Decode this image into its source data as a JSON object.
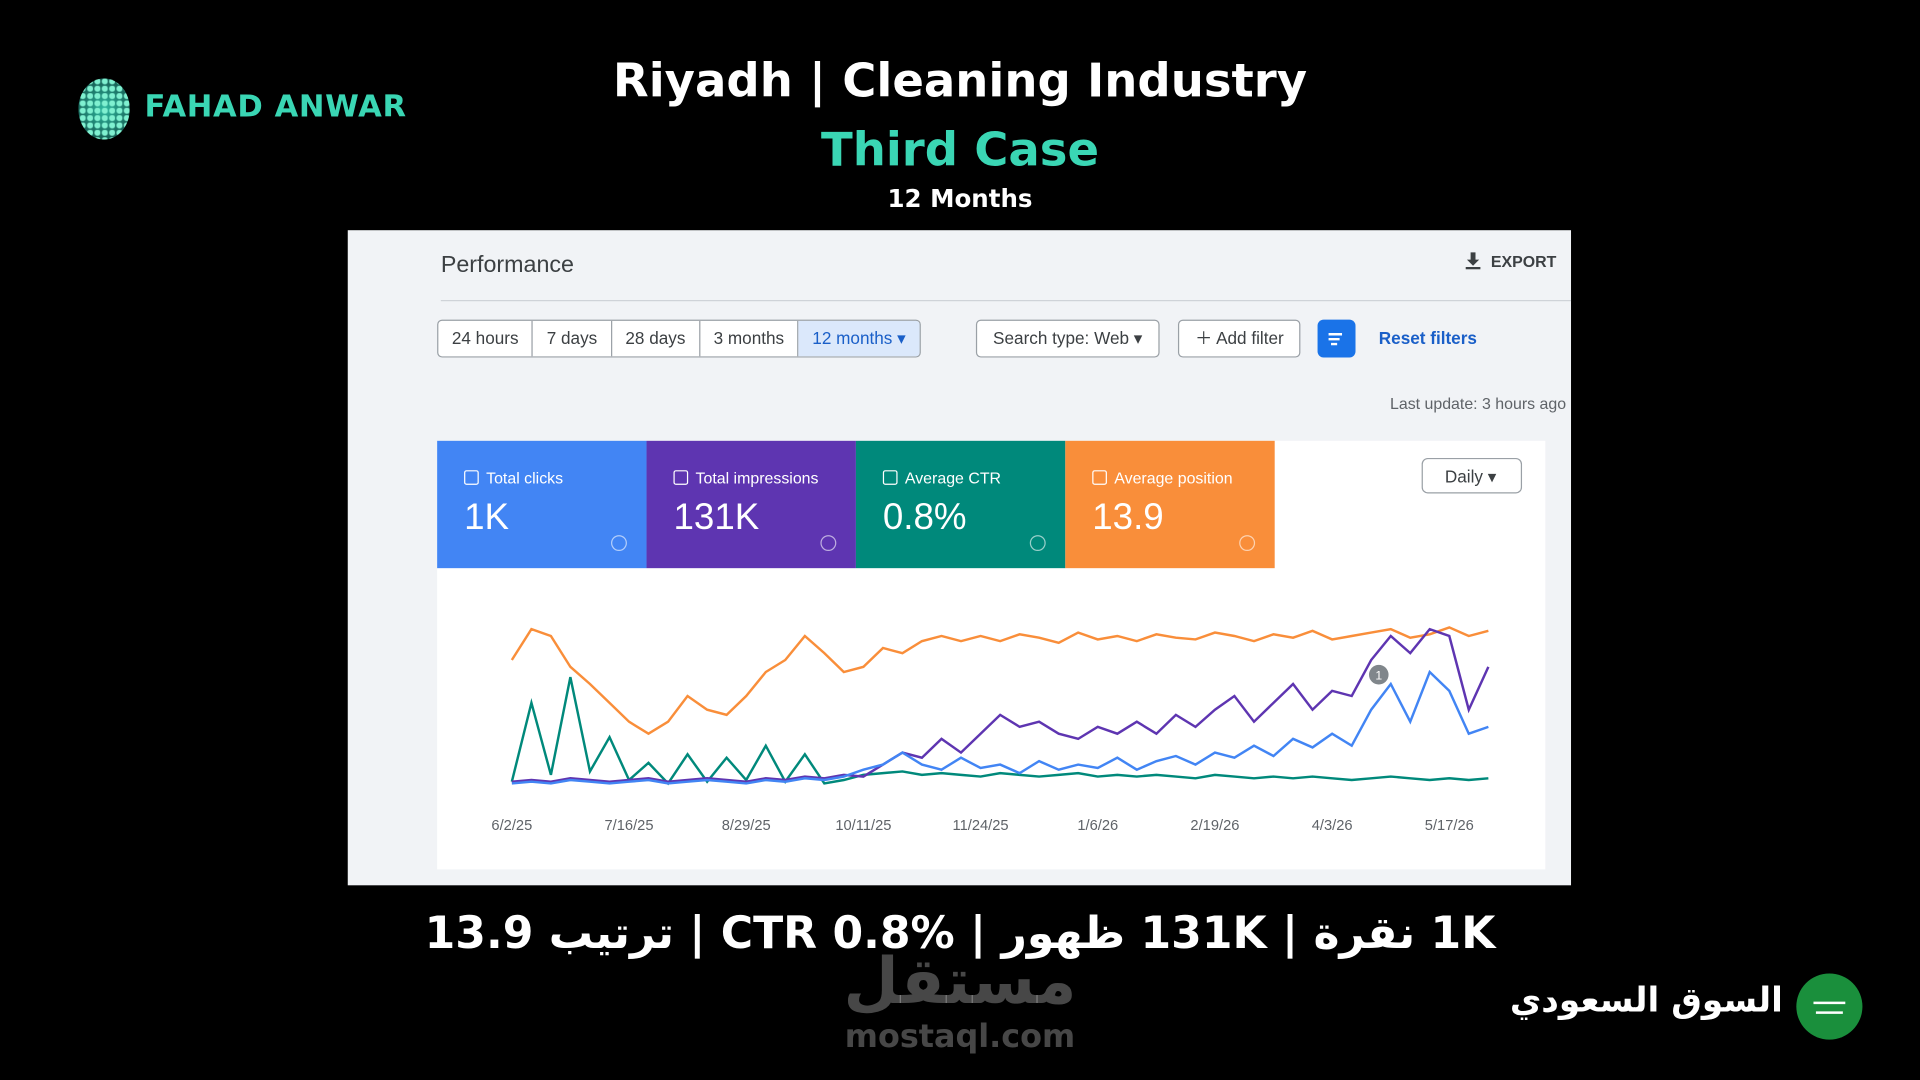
{
  "header": {
    "brand": "FAHAD ANWAR",
    "title": "Riyadh | Cleaning Industry",
    "subtitle": "Third Case",
    "period": "12 Months"
  },
  "panel": {
    "title": "Performance",
    "export": "EXPORT",
    "date_ranges": [
      "24 hours",
      "7 days",
      "28 days",
      "3 months",
      "12 months"
    ],
    "search_type": "Search type: Web",
    "add_filter": "Add filter",
    "reset_filters": "Reset filters",
    "last_update": "Last update: 3 hours ago",
    "granularity": "Daily"
  },
  "chart_data": {
    "type": "line",
    "categories": [
      "6/2/25",
      null,
      null,
      null,
      null,
      null,
      "7/16/25",
      null,
      null,
      null,
      null,
      null,
      "8/29/25",
      null,
      null,
      null,
      null,
      null,
      "10/11/25",
      null,
      null,
      null,
      null,
      null,
      "11/24/25",
      null,
      null,
      null,
      null,
      null,
      "1/6/26",
      null,
      null,
      null,
      null,
      null,
      "2/19/26",
      null,
      null,
      null,
      null,
      null,
      "4/3/26",
      null,
      null,
      null,
      null,
      null,
      "5/17/26",
      null,
      null
    ],
    "ylim": [
      0,
      100
    ],
    "annotation": "1",
    "series": [
      {
        "name": "Total clicks",
        "total": "1K",
        "color": "#4285f4",
        "values": [
          3,
          4,
          3,
          5,
          4,
          3,
          4,
          5,
          3,
          4,
          5,
          4,
          3,
          5,
          4,
          6,
          5,
          7,
          11,
          14,
          21,
          14,
          11,
          18,
          12,
          14,
          9,
          16,
          11,
          14,
          12,
          18,
          11,
          16,
          19,
          14,
          21,
          18,
          25,
          19,
          29,
          24,
          32,
          25,
          46,
          61,
          39,
          68,
          57,
          32,
          36
        ]
      },
      {
        "name": "Total impressions",
        "total": "131K",
        "color": "#5e35b1",
        "values": [
          4,
          5,
          4,
          6,
          5,
          4,
          5,
          6,
          4,
          5,
          6,
          5,
          4,
          6,
          5,
          7,
          6,
          8,
          7,
          14,
          21,
          18,
          29,
          21,
          32,
          43,
          36,
          39,
          32,
          29,
          36,
          32,
          39,
          32,
          43,
          36,
          46,
          54,
          39,
          50,
          61,
          46,
          57,
          54,
          75,
          89,
          79,
          93,
          89,
          46,
          71
        ]
      },
      {
        "name": "Average CTR",
        "total": "0.8%",
        "color": "#00897b",
        "values": [
          4,
          50,
          8,
          65,
          10,
          30,
          5,
          15,
          3,
          20,
          4,
          18,
          5,
          25,
          4,
          20,
          3,
          5,
          8,
          9,
          10,
          8,
          9,
          8,
          7,
          9,
          8,
          7,
          8,
          9,
          7,
          8,
          7,
          8,
          7,
          6,
          8,
          7,
          6,
          7,
          6,
          7,
          6,
          5,
          6,
          7,
          6,
          5,
          6,
          5,
          6
        ]
      },
      {
        "name": "Average position",
        "total": "13.9",
        "color": "#f98e3a",
        "values": [
          75,
          93,
          89,
          71,
          61,
          50,
          39,
          32,
          39,
          54,
          46,
          43,
          54,
          68,
          75,
          89,
          79,
          68,
          71,
          82,
          79,
          86,
          89,
          86,
          89,
          86,
          90,
          88,
          85,
          91,
          87,
          89,
          86,
          90,
          88,
          87,
          91,
          89,
          86,
          90,
          88,
          92,
          87,
          89,
          91,
          93,
          88,
          90,
          94,
          89,
          92
        ]
      }
    ]
  },
  "summary": "1K نقرة | 131K ظهور | CTR 0.8% | ترتيب 13.9",
  "watermark": {
    "arabic": "مستقل",
    "latin": "mostaql.com"
  },
  "market": "السوق السعودي"
}
